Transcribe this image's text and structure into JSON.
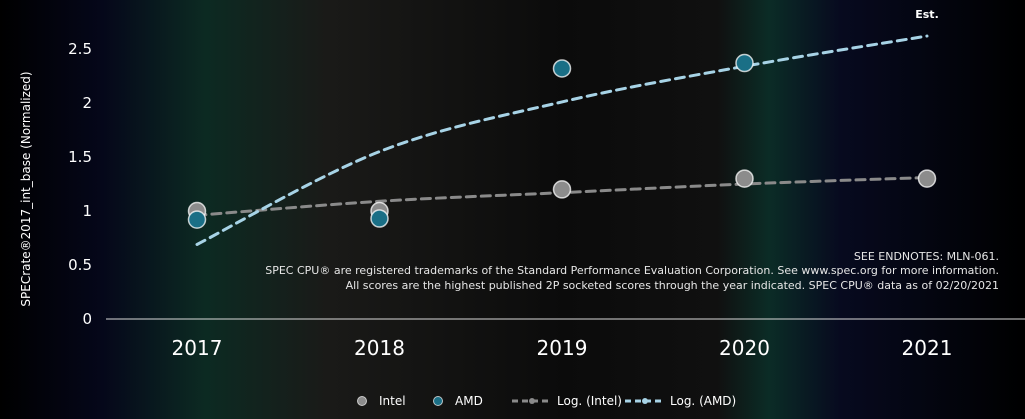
{
  "chart_data": {
    "type": "scatter",
    "title": "",
    "ylabel": "SPECrate®2017_int_base (Normalized)",
    "xlabel": "",
    "categories": [
      "2017",
      "2018",
      "2019",
      "2020",
      "2021"
    ],
    "yticks": [
      "0",
      "0.5",
      "1",
      "1.5",
      "2",
      "2.5"
    ],
    "ylim": [
      0,
      2.75
    ],
    "grid": false,
    "series": [
      {
        "name": "Intel",
        "kind": "points",
        "color": "#8c8c8c",
        "points": [
          {
            "x": "2017",
            "y": 1.0
          },
          {
            "x": "2018",
            "y": 1.0
          },
          {
            "x": "2019",
            "y": 1.2
          },
          {
            "x": "2020",
            "y": 1.3
          },
          {
            "x": "2021",
            "y": 1.3
          }
        ]
      },
      {
        "name": "AMD",
        "kind": "points",
        "color": "#1a6f86",
        "points": [
          {
            "x": "2017",
            "y": 0.92
          },
          {
            "x": "2018",
            "y": 0.93
          },
          {
            "x": "2019",
            "y": 2.32
          },
          {
            "x": "2020",
            "y": 2.37
          }
        ]
      },
      {
        "name": "Log. (Intel)",
        "kind": "trendline-log",
        "color": "#8a8a8a",
        "values": [
          0.96,
          1.09,
          1.17,
          1.25,
          1.31
        ]
      },
      {
        "name": "Log. (AMD)",
        "kind": "trendline-log",
        "color": "#a7d3e6",
        "values": [
          0.69,
          1.55,
          2.01,
          2.34,
          2.62
        ]
      }
    ],
    "annotation_est": "Est.",
    "legend_position": "bottom-center"
  },
  "notes": [
    "SEE ENDNOTES: MLN-061.",
    "SPEC CPU® are registered trademarks of the Standard Performance Evaluation Corporation. See www.spec.org for more information.",
    "All scores are the highest published 2P socketed scores through the year indicated. SPEC CPU® data as of 02/20/2021"
  ]
}
